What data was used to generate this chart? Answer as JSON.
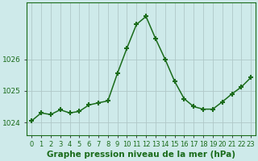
{
  "x": [
    0,
    1,
    2,
    3,
    4,
    5,
    6,
    7,
    8,
    9,
    10,
    11,
    12,
    13,
    14,
    15,
    16,
    17,
    18,
    19,
    20,
    21,
    22,
    23
  ],
  "y": [
    1024.05,
    1024.3,
    1024.25,
    1024.4,
    1024.3,
    1024.35,
    1024.55,
    1024.62,
    1024.68,
    1025.55,
    1026.35,
    1027.1,
    1027.35,
    1026.65,
    1026.0,
    1025.3,
    1024.75,
    1024.5,
    1024.42,
    1024.42,
    1024.65,
    1024.9,
    1025.12,
    1025.42
  ],
  "line_color": "#1a6b1a",
  "marker": "+",
  "markersize": 5,
  "markeredgewidth": 1.5,
  "linewidth": 1.1,
  "bg_color": "#ceeaea",
  "grid_color": "#b0c8c8",
  "xlabel": "Graphe pression niveau de la mer (hPa)",
  "xlabel_fontsize": 7.5,
  "xlabel_color": "#1a6b1a",
  "xlabel_weight": "bold",
  "yticks": [
    1024,
    1025,
    1026
  ],
  "ylim": [
    1023.6,
    1027.8
  ],
  "xlim": [
    -0.5,
    23.5
  ],
  "xtick_labels": [
    "0",
    "1",
    "2",
    "3",
    "4",
    "5",
    "6",
    "7",
    "8",
    "9",
    "10",
    "11",
    "12",
    "13",
    "14",
    "15",
    "16",
    "17",
    "18",
    "19",
    "20",
    "21",
    "22",
    "23"
  ],
  "tick_color": "#1a6b1a",
  "ytick_fontsize": 6.5,
  "xtick_fontsize": 6.0,
  "spine_color": "#1a6b1a"
}
